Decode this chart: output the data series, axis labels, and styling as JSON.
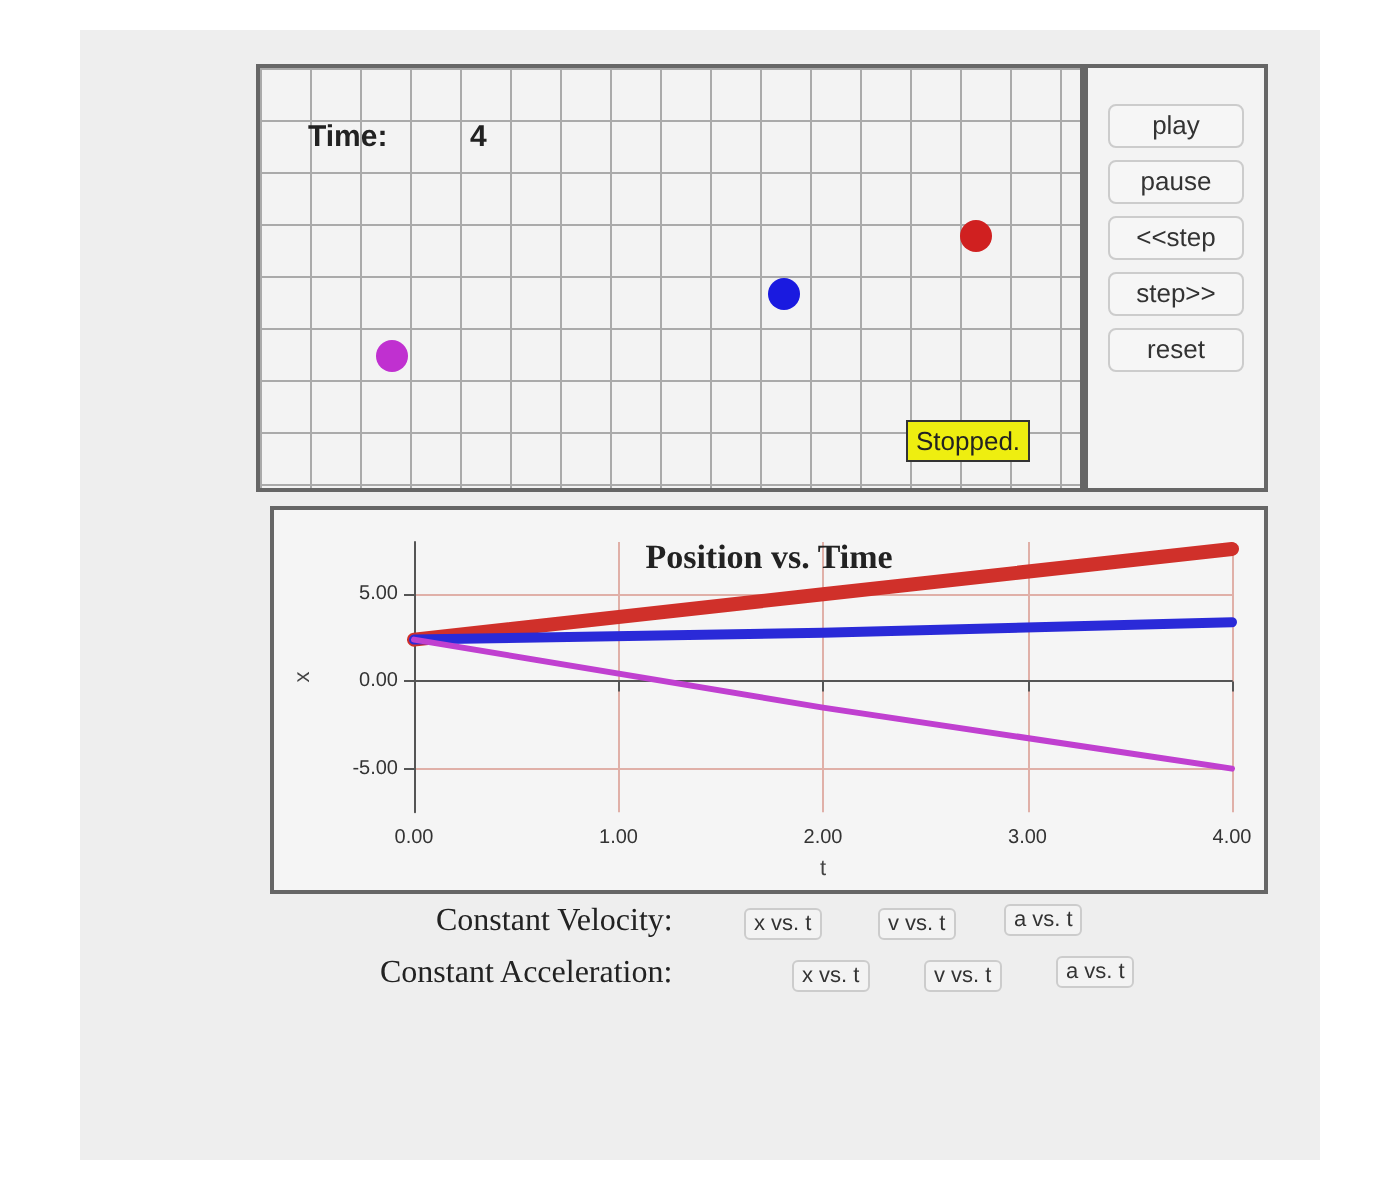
{
  "chart_data": [
    {
      "type": "other",
      "annotations": [
        "Time:",
        "4",
        "Stopped.",
        "play",
        "pause",
        "<<step",
        "step>>",
        "reset"
      ]
    },
    {
      "type": "line",
      "title": "Position vs. Time",
      "xlabel": "t",
      "ylabel": "x",
      "x": [
        0,
        2,
        4
      ],
      "series": [
        {
          "color": "#d0302a",
          "values": [
            2.4,
            5.0,
            7.6
          ]
        },
        {
          "color": "#2a2ad8",
          "values": [
            2.4,
            2.8,
            3.4
          ]
        },
        {
          "color": "#c040d0",
          "values": [
            2.4,
            -1.5,
            -5.0
          ]
        }
      ],
      "xlim": [
        0,
        4
      ],
      "xticks": [
        {
          "value": 0,
          "label": "0.00"
        },
        {
          "value": 1,
          "label": "1.00"
        },
        {
          "value": 2,
          "label": "2.00"
        },
        {
          "value": 3,
          "label": "3.00"
        },
        {
          "value": 4,
          "label": "4.00"
        }
      ],
      "ylim": [
        -7.5,
        8
      ],
      "yticks": [
        {
          "value": -5,
          "label": "-5.00"
        },
        {
          "value": 0,
          "label": "0.00"
        },
        {
          "value": 5,
          "label": "5.00"
        }
      ],
      "grid": true,
      "marker": "none",
      "line_style": "solid",
      "annotations": [
        "Constant Velocity:",
        "x vs. t",
        "v vs. t",
        "a vs. t",
        "Constant Acceleration:",
        "x vs. t",
        "v vs. t",
        "a vs. t"
      ]
    }
  ]
}
